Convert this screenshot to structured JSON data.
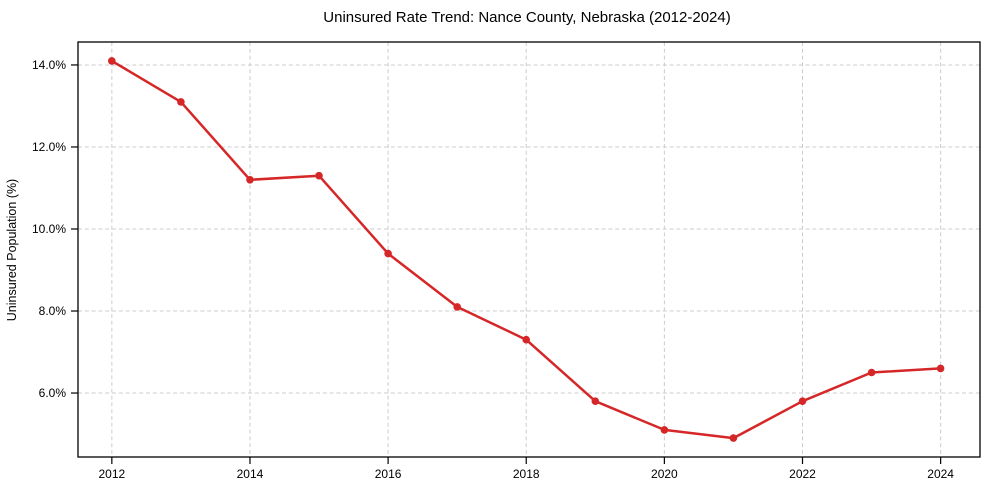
{
  "chart_data": {
    "type": "line",
    "title": "Uninsured Rate Trend: Nance County, Nebraska (2012-2024)",
    "xlabel": "",
    "ylabel": "Uninsured Population (%)",
    "x": [
      2012,
      2013,
      2014,
      2015,
      2016,
      2017,
      2018,
      2019,
      2020,
      2021,
      2022,
      2023,
      2024
    ],
    "series": [
      {
        "name": "Uninsured rate",
        "color": "#d62728",
        "marker": "circle",
        "values": [
          14.1,
          13.1,
          11.2,
          11.3,
          9.4,
          8.1,
          7.3,
          5.8,
          5.1,
          4.9,
          5.8,
          6.5,
          6.6
        ]
      }
    ],
    "xticks": {
      "values": [
        2012,
        2014,
        2016,
        2018,
        2020,
        2022,
        2024
      ],
      "labels": [
        "2012",
        "2014",
        "2016",
        "2018",
        "2020",
        "2022",
        "2024"
      ]
    },
    "yticks": {
      "values": [
        6,
        8,
        10,
        12,
        14
      ],
      "labels": [
        "6.0%",
        "8.0%",
        "10.0%",
        "12.0%",
        "14.0%"
      ]
    },
    "xlim": [
      2011.51,
      2024.57
    ],
    "ylim": [
      4.44,
      14.56
    ],
    "grid": {
      "on": true,
      "style": "dashed",
      "color": "#cccccc"
    },
    "legend": "none",
    "background": "#ffffff",
    "axes_color": "#000000"
  }
}
